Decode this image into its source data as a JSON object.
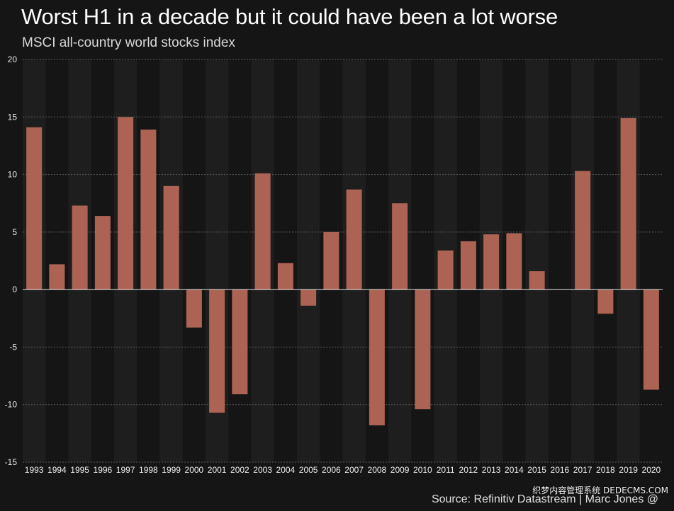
{
  "header": {
    "title": "Worst H1 in a decade but it could have been a lot worse",
    "subtitle": "MSCI all-country world stocks index"
  },
  "footer": {
    "source": "Source: Refinitiv Datastream | Marc Jones @",
    "watermark": "织梦内容管理系统 DEDECMS.COM"
  },
  "colors": {
    "background": "#151515",
    "band_alt": "#1e1e1e",
    "bar": "#ad6354",
    "grid": "#5a5a5a",
    "zero_line": "#e6e6e6"
  },
  "chart_data": {
    "type": "bar",
    "title": "Worst H1 in a decade but it could have been a lot worse",
    "subtitle": "MSCI all-country world stocks index",
    "xlabel": "",
    "ylabel": "",
    "ylim": [
      -15,
      20
    ],
    "yticks": [
      20,
      15,
      10,
      5,
      0,
      -5,
      -10,
      -15
    ],
    "grid": true,
    "categories": [
      "1993",
      "1994",
      "1995",
      "1996",
      "1997",
      "1998",
      "1999",
      "2000",
      "2001",
      "2002",
      "2003",
      "2004",
      "2005",
      "2006",
      "2007",
      "2008",
      "2009",
      "2010",
      "2011",
      "2012",
      "2013",
      "2014",
      "2015",
      "2016",
      "2017",
      "2018",
      "2019",
      "2020"
    ],
    "values": [
      14.1,
      2.2,
      7.3,
      6.4,
      15.0,
      13.9,
      9.0,
      -3.3,
      -10.7,
      -9.1,
      10.1,
      2.3,
      -1.4,
      5.0,
      8.7,
      -11.8,
      7.5,
      -10.4,
      3.4,
      4.2,
      4.8,
      4.9,
      1.6,
      0.0,
      10.3,
      -2.1,
      14.9,
      -8.7
    ]
  }
}
